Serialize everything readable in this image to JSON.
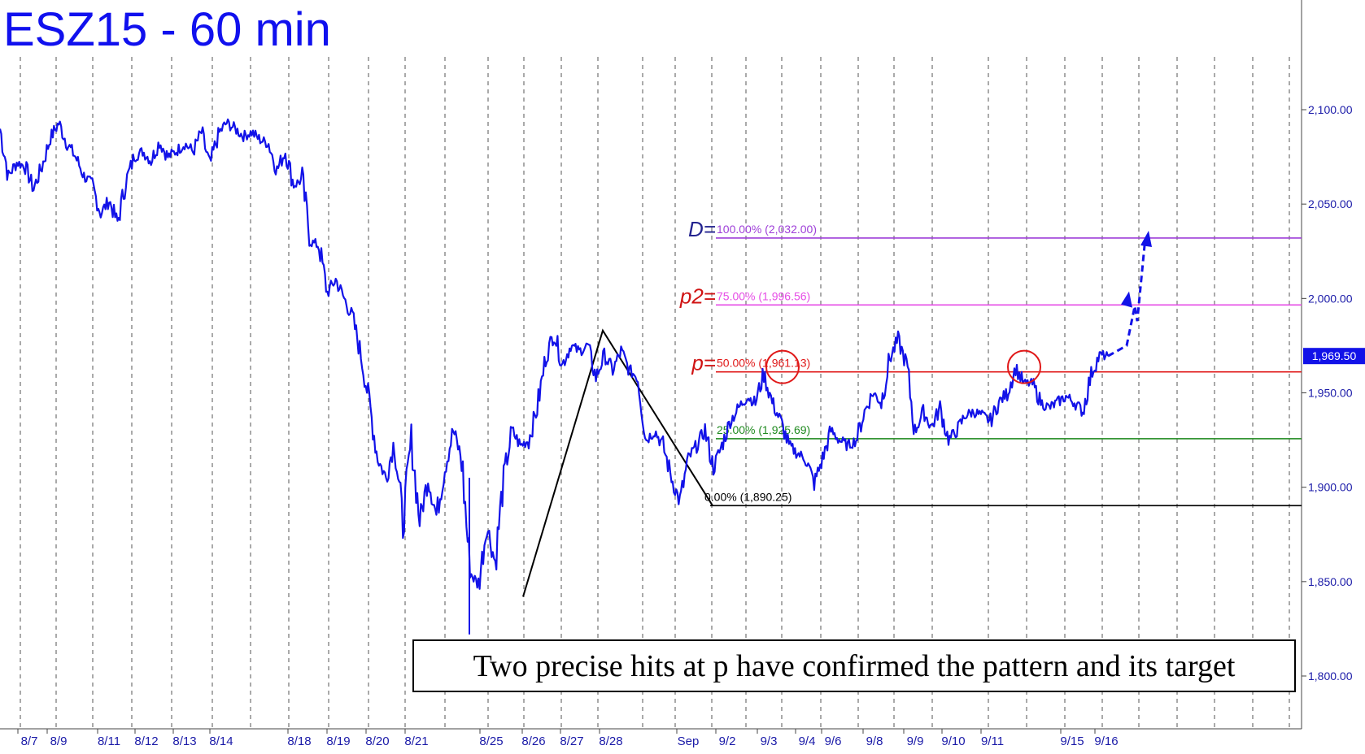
{
  "title": "ESZ15 - 60 min",
  "colors": {
    "price": "#1212e8",
    "axis": "#1a1aa8",
    "fib_100": "#9e3fd8",
    "fib_75": "#e64ce6",
    "fib_50": "#e01818",
    "fib_25": "#1f8a1f",
    "fib_0": "#000000",
    "name_D": "#23238f",
    "name_p2": "#d01414",
    "name_p": "#d01414"
  },
  "chart_data": {
    "type": "line",
    "title": "ESZ15 - 60 min",
    "ylim": [
      1790,
      2140
    ],
    "y_tick_labels": [
      "2,100.00",
      "2,050.00",
      "2,000.00",
      "1,950.00",
      "1,900.00",
      "1,850.00",
      "1,800.00"
    ],
    "y_ticks": [
      2100,
      2050,
      2000,
      1950,
      1900,
      1850,
      1800
    ],
    "x_labels": [
      "8/7",
      "8/9",
      "8/11",
      "8/12",
      "8/13",
      "8/14",
      "8/18",
      "8/19",
      "8/20",
      "8/21",
      "8/25",
      "8/26",
      "8/27",
      "8/28",
      "Sep",
      "9/2",
      "9/3",
      "9/4",
      "9/6",
      "9/8",
      "9/9",
      "9/10",
      "9/11",
      "9/15",
      "9/16"
    ],
    "grid": "vertical dashed session separators",
    "last_price_label": "1,969.50",
    "last_price": 1969.5,
    "series": [
      {
        "values": [
          2090,
          2065,
          2072,
          2070,
          2058,
          2070,
          2085,
          2093,
          2082,
          2075,
          2065,
          2060,
          2045,
          2052,
          2040,
          2062,
          2075,
          2078,
          2073,
          2083,
          2075,
          2078,
          2082,
          2078,
          2088,
          2070,
          2087,
          2093,
          2090,
          2086,
          2088,
          2084,
          2082,
          2068,
          2078,
          2060,
          2063,
          2030,
          2028,
          2003,
          2010,
          2000,
          1990,
          1970,
          1945,
          1915,
          1905,
          1925,
          1880,
          1925,
          1882,
          1905,
          1885,
          1910,
          1930,
          1915,
          1855,
          1848,
          1880,
          1860,
          1905,
          1930,
          1922,
          1925,
          1942,
          1968,
          1982,
          1965,
          1975,
          1972,
          1975,
          1958,
          1970,
          1962,
          1972,
          1962,
          1958,
          1925,
          1930,
          1922,
          1905,
          1892,
          1915,
          1922,
          1930,
          1910,
          1922,
          1935,
          1942,
          1948,
          1945,
          1960,
          1945,
          1935,
          1922,
          1918,
          1915,
          1902,
          1915,
          1930,
          1925,
          1922,
          1925,
          1940,
          1950,
          1945,
          1968,
          1978,
          1965,
          1930,
          1940,
          1932,
          1942,
          1925,
          1930,
          1938,
          1940,
          1938,
          1935,
          1945,
          1950,
          1963,
          1955,
          1955,
          1945,
          1942,
          1945,
          1948,
          1945,
          1940,
          1960,
          1970,
          1969.5
        ]
      }
    ],
    "fib_levels": [
      {
        "name": "D=",
        "label": "100.00% (2,032.00)",
        "value": 2032.0
      },
      {
        "name": "p2=",
        "label": "75.00% (1,996.56)",
        "value": 1996.56
      },
      {
        "name": "p=",
        "label": "50.00% (1,961.13)",
        "value": 1961.13
      },
      {
        "name": "",
        "label": "25.00% (1,925.69)",
        "value": 1925.69
      },
      {
        "name": "",
        "label": "0.00% (1,890.25)",
        "value": 1890.25
      }
    ],
    "pattern_pivots": [
      1842,
      1983,
      1890.25
    ],
    "hit_circles": 2,
    "projection_target": 2032.0,
    "annotation": "Two precise hits at p have confirmed the pattern and its target"
  }
}
